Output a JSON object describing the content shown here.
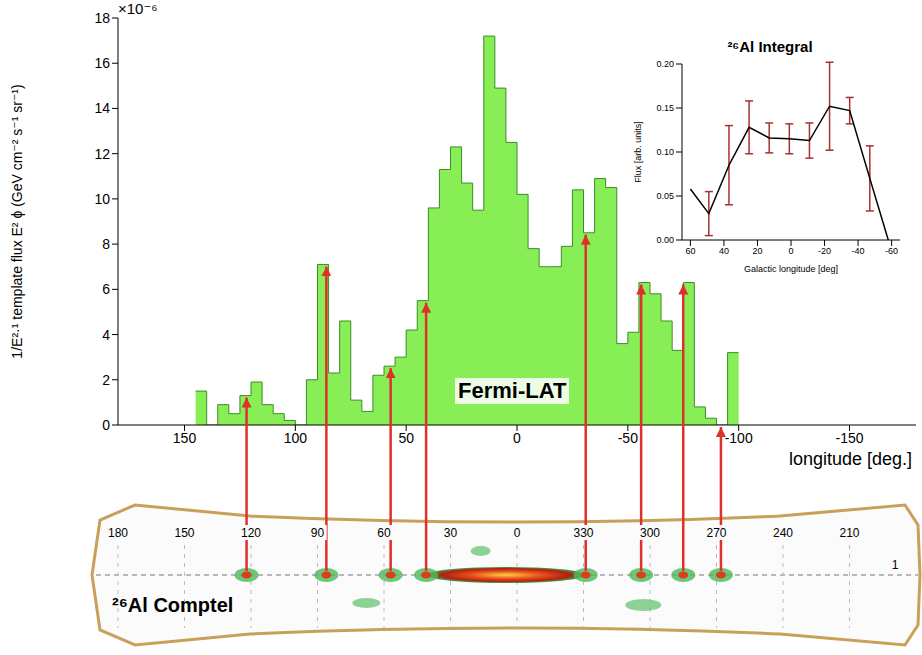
{
  "chart_data": [
    {
      "type": "histogram",
      "annotations": [
        {
          "text": "×10⁻⁶"
        },
        {
          "text": "Fermi-LAT"
        }
      ],
      "x_label": "longitude [deg.]",
      "y_label": "1/E²·¹ template flux E² ϕ (GeV cm⁻² s⁻¹ sr⁻¹)",
      "bins": [
        145,
        140,
        135,
        130,
        125,
        120,
        115,
        110,
        105,
        100,
        95,
        90,
        85,
        80,
        75,
        70,
        65,
        60,
        55,
        50,
        45,
        40,
        35,
        30,
        25,
        20,
        15,
        10,
        5,
        0,
        -5,
        -10,
        -15,
        -20,
        -25,
        -30,
        -35,
        -40,
        -45,
        -50,
        -55,
        -60,
        -65,
        -70,
        -75,
        -80,
        -85,
        -90,
        -95,
        -100
      ],
      "counts": [
        1.5,
        0,
        0.9,
        0.5,
        1.3,
        1.9,
        0.9,
        0.5,
        0.2,
        0,
        2.0,
        7.1,
        2.3,
        4.6,
        1.1,
        0.6,
        2.2,
        2.6,
        3.0,
        4.2,
        5.5,
        9.6,
        11.3,
        12.3,
        10.7,
        9.5,
        17.2,
        14.9,
        12.5,
        10.2,
        7.8,
        7.0,
        7.0,
        7.9,
        10.4,
        8.5,
        10.9,
        10.5,
        3.6,
        4.1,
        6.3,
        5.8,
        4.6,
        3.3,
        6.3,
        0.8,
        0.3,
        0,
        3.2
      ],
      "color": "#88ee55",
      "xlim": [
        180,
        -180
      ],
      "xticks": [
        150,
        100,
        50,
        0,
        -50,
        -100,
        -150
      ],
      "ylim": [
        0,
        18
      ],
      "yticks": [
        0,
        2,
        4,
        6,
        8,
        10,
        12,
        14,
        16,
        18
      ],
      "grid": false
    },
    {
      "type": "line",
      "title": "²⁶Al Integral",
      "x_label": "Galactic longitude [deg]",
      "y_label": "Flux [arb. units]",
      "x": [
        60,
        49,
        37,
        25,
        13,
        1,
        -11,
        -23,
        -35,
        -47,
        -58
      ],
      "values": [
        0.058,
        0.03,
        0.085,
        0.128,
        0.116,
        0.115,
        0.113,
        0.152,
        0.147,
        0.07,
        0.0
      ],
      "errors": [
        null,
        0.025,
        0.045,
        0.03,
        0.017,
        0.017,
        0.02,
        0.05,
        0.015,
        0.037,
        null
      ],
      "color": "#000000",
      "xlim": [
        65,
        -65
      ],
      "xticks": [
        60,
        40,
        20,
        0,
        -20,
        -40,
        -60
      ],
      "ylim": [
        0,
        0.2
      ],
      "yticks": [
        {
          "value": 0,
          "label": "0.00"
        },
        {
          "value": 0.05,
          "label": "0.05"
        },
        {
          "value": 0.1,
          "label": "0.10"
        },
        {
          "value": 0.15,
          "label": "0.15"
        },
        {
          "value": 0.2,
          "label": "0.20"
        }
      ],
      "grid": false
    },
    {
      "type": "map",
      "title": "²⁶Al Comptel",
      "longitude_labels": [
        180,
        150,
        120,
        90,
        60,
        30,
        0,
        330,
        300,
        270,
        240,
        210
      ],
      "latitude_labels": [
        1
      ],
      "arrow_longitudes": [
        122,
        86,
        57,
        41,
        -31,
        -56,
        -75,
        -92
      ]
    }
  ]
}
